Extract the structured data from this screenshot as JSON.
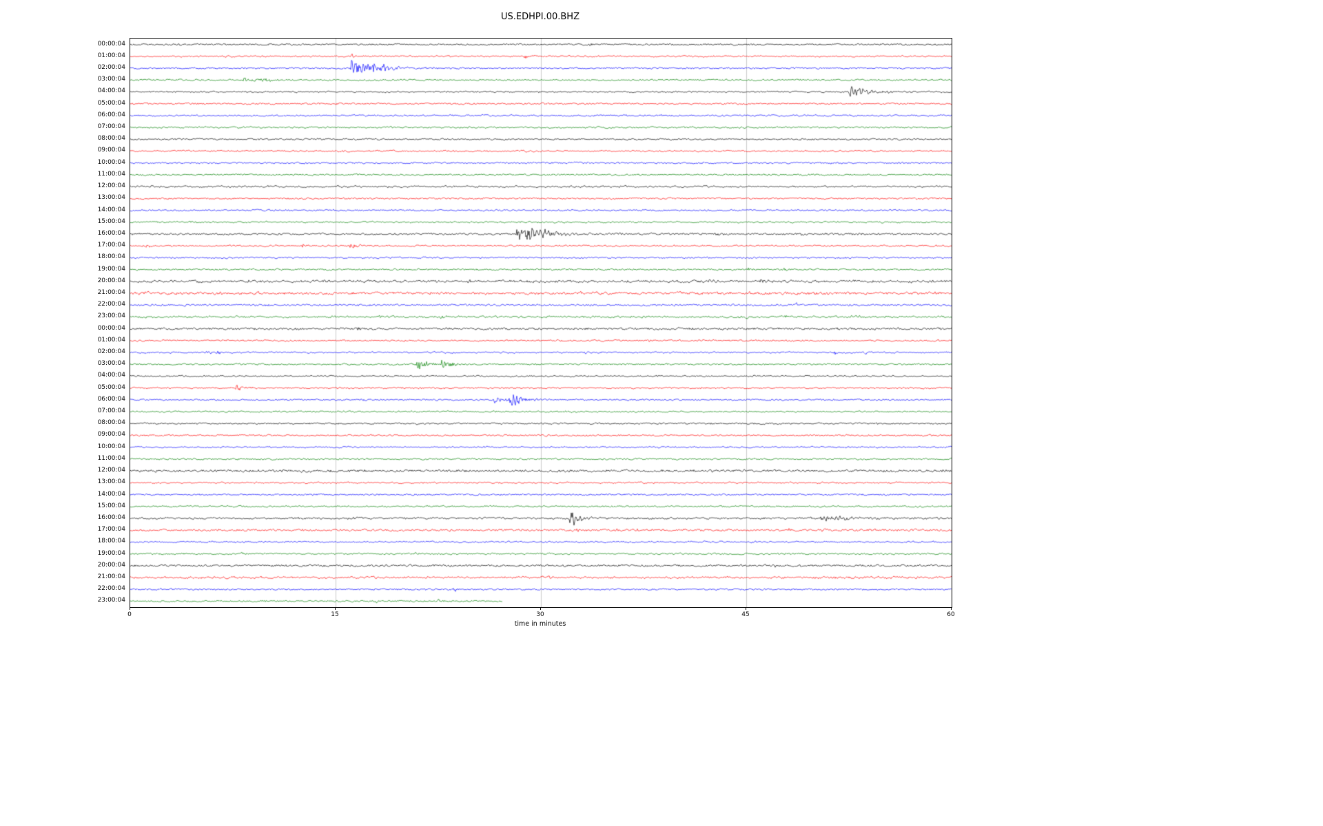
{
  "chart_data": {
    "type": "line",
    "subtype": "seismogram-dayplot",
    "title": "US.EDHPI.00.BHZ",
    "xlabel": "time in minutes",
    "x_range": [
      0,
      60
    ],
    "x_ticks": [
      0,
      15,
      30,
      45,
      60
    ],
    "grid_minutes": [
      15,
      30,
      45
    ],
    "grid_color": "#c8c8c8",
    "trace_colors": [
      "#000000",
      "#ff0000",
      "#0000ff",
      "#008000"
    ],
    "row_labels": [
      "00:00:04",
      "01:00:04",
      "02:00:04",
      "03:00:04",
      "04:00:04",
      "05:00:04",
      "06:00:04",
      "07:00:04",
      "08:00:04",
      "09:00:04",
      "10:00:04",
      "11:00:04",
      "12:00:04",
      "13:00:04",
      "14:00:04",
      "15:00:04",
      "16:00:04",
      "17:00:04",
      "18:00:04",
      "19:00:04",
      "20:00:04",
      "21:00:04",
      "22:00:04",
      "23:00:04",
      "00:00:04",
      "01:00:04",
      "02:00:04",
      "03:00:04",
      "04:00:04",
      "05:00:04",
      "06:00:04",
      "07:00:04",
      "08:00:04",
      "09:00:04",
      "10:00:04",
      "11:00:04",
      "12:00:04",
      "13:00:04",
      "14:00:04",
      "15:00:04",
      "16:00:04",
      "17:00:04",
      "18:00:04",
      "19:00:04",
      "20:00:04",
      "21:00:04",
      "22:00:04",
      "23:00:04"
    ],
    "noise_boost": {
      "12": 1.15,
      "16": 1.2,
      "20": 1.5,
      "21": 1.6,
      "22": 1.15,
      "23": 1.2,
      "24": 1.3,
      "36": 1.5,
      "40": 1.2,
      "41": 1.3,
      "44": 1.25,
      "45": 1.3
    },
    "row_end_minute": {
      "47": 27.2
    },
    "events": [
      {
        "r": 0,
        "m": 3.5,
        "a": 2.5,
        "d": 0.4
      },
      {
        "r": 0,
        "m": 33.6,
        "a": 2,
        "d": 0.2
      },
      {
        "r": 1,
        "m": 16.2,
        "a": 4,
        "d": 0.15
      },
      {
        "r": 1,
        "m": 28.8,
        "a": 5,
        "d": 0.3
      },
      {
        "r": 2,
        "m": 16.2,
        "a": 11,
        "d": 1.8
      },
      {
        "r": 2,
        "m": 17.8,
        "a": 5,
        "d": 0.8
      },
      {
        "r": 3,
        "m": 8.3,
        "a": 4,
        "d": 1.2
      },
      {
        "r": 3,
        "m": 9.5,
        "a": 3,
        "d": 0.5
      },
      {
        "r": 4,
        "m": 52.6,
        "a": 8,
        "d": 1.2
      },
      {
        "r": 16,
        "m": 28.3,
        "a": 10,
        "d": 2.0
      },
      {
        "r": 16,
        "m": 29.2,
        "a": 6,
        "d": 1.0
      },
      {
        "r": 16,
        "m": 42.8,
        "a": 3,
        "d": 0.4
      },
      {
        "r": 16,
        "m": 49.0,
        "a": 2.5,
        "d": 0.3
      },
      {
        "r": 17,
        "m": 1.2,
        "a": 3,
        "d": 0.4
      },
      {
        "r": 17,
        "m": 12.6,
        "a": 3,
        "d": 0.3
      },
      {
        "r": 17,
        "m": 16.1,
        "a": 3.5,
        "d": 0.5
      },
      {
        "r": 17,
        "m": 16.9,
        "a": 3,
        "d": 0.3
      },
      {
        "r": 18,
        "m": 53.8,
        "a": 2.5,
        "d": 0.2
      },
      {
        "r": 19,
        "m": 45.2,
        "a": 2,
        "d": 0.4
      },
      {
        "r": 19,
        "m": 47.8,
        "a": 3,
        "d": 0.3
      },
      {
        "r": 20,
        "m": 8.6,
        "a": 2,
        "d": 0.3
      },
      {
        "r": 20,
        "m": 19.8,
        "a": 2.5,
        "d": 0.3
      },
      {
        "r": 20,
        "m": 24.7,
        "a": 2.5,
        "d": 0.3
      },
      {
        "r": 20,
        "m": 42.3,
        "a": 2,
        "d": 0.3
      },
      {
        "r": 20,
        "m": 45.9,
        "a": 3,
        "d": 0.4
      },
      {
        "r": 21,
        "m": 49.6,
        "a": 2.5,
        "d": 0.3
      },
      {
        "r": 22,
        "m": 33.6,
        "a": 2,
        "d": 0.2
      },
      {
        "r": 22,
        "m": 48.7,
        "a": 2.5,
        "d": 0.3
      },
      {
        "r": 23,
        "m": 14.4,
        "a": 2,
        "d": 0.3
      },
      {
        "r": 23,
        "m": 18.2,
        "a": 2.5,
        "d": 0.3
      },
      {
        "r": 23,
        "m": 22.7,
        "a": 2.5,
        "d": 0.3
      },
      {
        "r": 23,
        "m": 45.0,
        "a": 2.5,
        "d": 0.4
      },
      {
        "r": 23,
        "m": 47.9,
        "a": 2.5,
        "d": 0.4
      },
      {
        "r": 23,
        "m": 52.6,
        "a": 2.5,
        "d": 0.4
      },
      {
        "r": 24,
        "m": 16.6,
        "a": 3,
        "d": 0.3
      },
      {
        "r": 24,
        "m": 23.1,
        "a": 2.5,
        "d": 0.3
      },
      {
        "r": 24,
        "m": 40.9,
        "a": 2,
        "d": 0.3
      },
      {
        "r": 25,
        "m": 37.9,
        "a": 2,
        "d": 0.2
      },
      {
        "r": 26,
        "m": 5.6,
        "a": 3,
        "d": 0.4
      },
      {
        "r": 26,
        "m": 6.3,
        "a": 3,
        "d": 0.3
      },
      {
        "r": 26,
        "m": 33.2,
        "a": 2,
        "d": 0.2
      },
      {
        "r": 26,
        "m": 51.5,
        "a": 3,
        "d": 0.3
      },
      {
        "r": 26,
        "m": 53.6,
        "a": 3.5,
        "d": 0.4
      },
      {
        "r": 27,
        "m": 21.0,
        "a": 9,
        "d": 0.6
      },
      {
        "r": 27,
        "m": 22.8,
        "a": 10,
        "d": 0.6
      },
      {
        "r": 29,
        "m": 7.6,
        "a": 6,
        "d": 0.5
      },
      {
        "r": 30,
        "m": 26.6,
        "a": 5,
        "d": 0.8
      },
      {
        "r": 30,
        "m": 27.8,
        "a": 11,
        "d": 0.8
      },
      {
        "r": 40,
        "m": 32.2,
        "a": 13,
        "d": 0.5
      },
      {
        "r": 40,
        "m": 33.6,
        "a": 4,
        "d": 0.3
      },
      {
        "r": 40,
        "m": 50.5,
        "a": 4,
        "d": 1.2
      },
      {
        "r": 40,
        "m": 51.5,
        "a": 3.5,
        "d": 0.8
      },
      {
        "r": 41,
        "m": 32.2,
        "a": 5,
        "d": 0.4
      },
      {
        "r": 41,
        "m": 35.6,
        "a": 3,
        "d": 0.3
      },
      {
        "r": 41,
        "m": 36.9,
        "a": 2.5,
        "d": 0.3
      },
      {
        "r": 41,
        "m": 48.1,
        "a": 2.5,
        "d": 0.3
      },
      {
        "r": 41,
        "m": 50.6,
        "a": 2,
        "d": 0.3
      },
      {
        "r": 43,
        "m": 8.1,
        "a": 2,
        "d": 0.3
      },
      {
        "r": 43,
        "m": 20.9,
        "a": 3,
        "d": 0.3
      },
      {
        "r": 43,
        "m": 30.4,
        "a": 2.5,
        "d": 0.3
      },
      {
        "r": 44,
        "m": 44.4,
        "a": 2,
        "d": 0.3
      },
      {
        "r": 44,
        "m": 47.1,
        "a": 2.5,
        "d": 0.3
      },
      {
        "r": 44,
        "m": 48.9,
        "a": 2,
        "d": 0.3
      },
      {
        "r": 45,
        "m": 30.6,
        "a": 2,
        "d": 0.3
      },
      {
        "r": 45,
        "m": 48.9,
        "a": 2,
        "d": 0.3
      },
      {
        "r": 45,
        "m": 52.1,
        "a": 2,
        "d": 0.3
      },
      {
        "r": 45,
        "m": 56.9,
        "a": 2,
        "d": 0.3
      },
      {
        "r": 46,
        "m": 23.7,
        "a": 3,
        "d": 0.3
      },
      {
        "r": 47,
        "m": 18.0,
        "a": 2.5,
        "d": 0.3
      },
      {
        "r": 47,
        "m": 22.5,
        "a": 2.5,
        "d": 0.3
      }
    ]
  }
}
